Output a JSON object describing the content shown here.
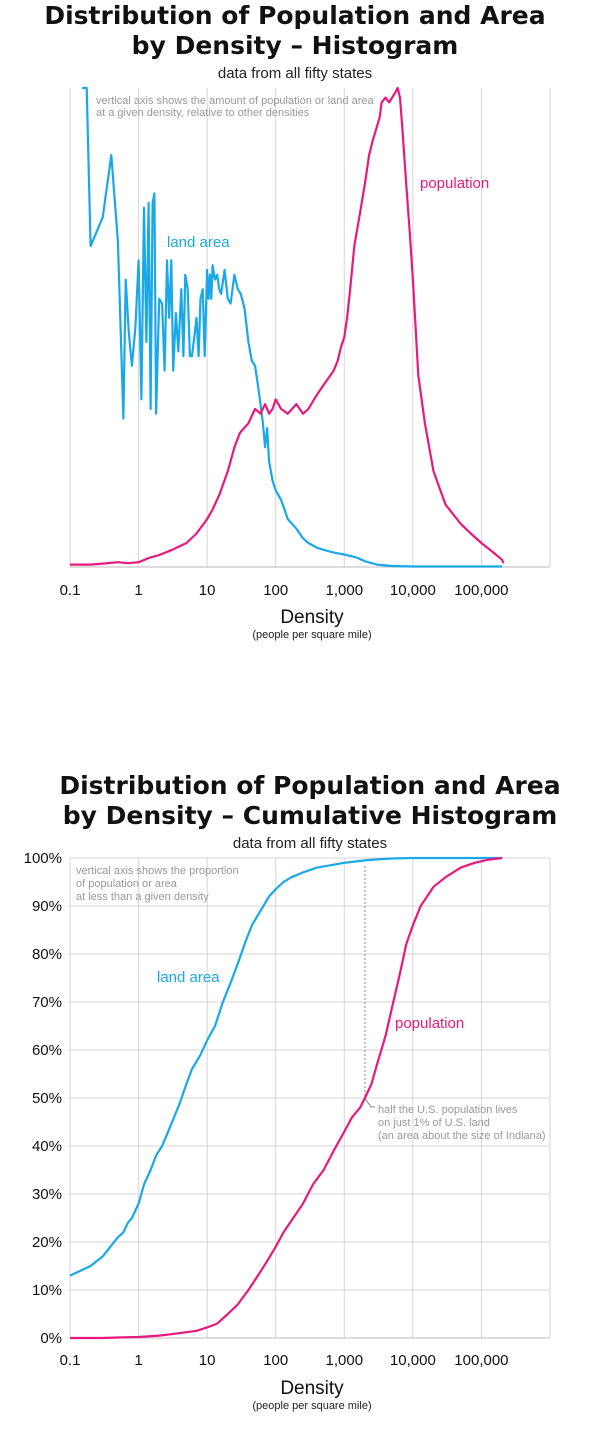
{
  "chart_data": [
    {
      "type": "line",
      "title_lines": [
        "Distribution of Population and Area",
        "by Density – Histogram"
      ],
      "subtitle": "data from all fifty states",
      "note_lines": [
        "vertical axis shows the amount of population or land area",
        "at a given density, relative to other densities"
      ],
      "xlabel": "Density",
      "xlabel_unit": "(people per square mile)",
      "x_scale": "log",
      "x_ticks": [
        0.1,
        1,
        10,
        100,
        1000,
        10000,
        100000
      ],
      "x_tick_labels": [
        "0.1",
        "1",
        "10",
        "100",
        "1,000",
        "10,000",
        "100,000"
      ],
      "xlim": [
        0.1,
        1000000
      ],
      "ylim": [
        0,
        100
      ],
      "grid": "vertical",
      "series": [
        {
          "name": "land area",
          "color": "#1aa8e8",
          "x": [
            0.15,
            0.175,
            0.2,
            0.3,
            0.4,
            0.5,
            0.6,
            0.65,
            0.72,
            0.8,
            0.9,
            1.0,
            1.1,
            1.2,
            1.3,
            1.4,
            1.5,
            1.6,
            1.7,
            1.8,
            2.0,
            2.2,
            2.4,
            2.6,
            2.8,
            3.0,
            3.2,
            3.5,
            3.8,
            4.2,
            4.5,
            4.8,
            5.2,
            5.6,
            6.0,
            6.5,
            7.0,
            7.5,
            8.0,
            8.6,
            9.2,
            10,
            10.5,
            11,
            11.5,
            12,
            13,
            14,
            15,
            16,
            18,
            20,
            22,
            25,
            28,
            31,
            35,
            40,
            45,
            50,
            55,
            60,
            65,
            70,
            75,
            80,
            90,
            100,
            120,
            150,
            200,
            250,
            300,
            400,
            500,
            700,
            1000,
            1500,
            2000,
            3000,
            5000,
            10000,
            50000,
            200000
          ],
          "y": [
            100,
            110,
            67,
            73,
            86,
            68,
            31,
            60,
            49,
            42,
            50,
            64,
            35,
            75,
            47,
            76,
            33,
            76,
            78,
            32,
            56,
            55,
            41,
            64,
            52,
            64,
            41,
            53,
            45,
            58,
            44,
            61,
            58,
            44,
            44,
            48,
            52,
            44,
            56,
            58,
            44,
            62,
            56,
            61,
            56,
            63,
            60,
            61,
            58,
            57,
            62,
            56,
            55,
            61,
            58,
            57,
            54,
            47,
            43,
            42,
            38,
            34,
            30,
            25,
            29,
            22,
            18,
            16,
            14,
            10,
            8,
            6,
            5,
            4,
            3.6,
            3,
            2.6,
            2,
            1.2,
            0.5,
            0.2,
            0.1,
            0.1,
            0.1
          ]
        },
        {
          "name": "population",
          "color": "#e8197e",
          "x": [
            0.1,
            0.2,
            0.3,
            0.5,
            0.7,
            1.0,
            1.5,
            2,
            3,
            5,
            7,
            10,
            12,
            15,
            20,
            25,
            30,
            40,
            50,
            60,
            70,
            80,
            90,
            100,
            120,
            150,
            200,
            250,
            300,
            400,
            500,
            700,
            800,
            900,
            1000,
            1100,
            1200,
            1400,
            1700,
            2000,
            2300,
            2600,
            3000,
            3300,
            3500,
            4000,
            4500,
            5000,
            5500,
            6000,
            6500,
            7000,
            8000,
            9000,
            10000,
            12000,
            15000,
            20000,
            30000,
            50000,
            70000,
            100000,
            150000,
            200000,
            210000
          ],
          "y": [
            0.5,
            0.5,
            0.7,
            1,
            0.8,
            1,
            2,
            2.5,
            3.5,
            5,
            7,
            10,
            12,
            15,
            20,
            25,
            28,
            30,
            33,
            32,
            34,
            32,
            33,
            35,
            33,
            32,
            34,
            32,
            33,
            36,
            38,
            41,
            43,
            46,
            48,
            52,
            57,
            67,
            74,
            80,
            86,
            89,
            92,
            94,
            97,
            98,
            97,
            98,
            99,
            100,
            98,
            92,
            80,
            70,
            60,
            40,
            30,
            20,
            13,
            9,
            7,
            5,
            3,
            1.5,
            0.8
          ]
        }
      ]
    },
    {
      "type": "line",
      "title_lines": [
        "Distribution of Population and Area",
        "by Density – Cumulative Histogram"
      ],
      "subtitle": "data from all fifty states",
      "note_lines": [
        "vertical axis shows the proportion",
        "of population or area",
        "at less than a given density"
      ],
      "annotation_lines": [
        "half the U.S. population lives",
        "on just 1% of U.S. land",
        "(an area about the size of Indiana)"
      ],
      "annotation_x": 2000,
      "annotation_y": 50,
      "xlabel": "Density",
      "xlabel_unit": "(people per square mile)",
      "x_scale": "log",
      "x_ticks": [
        0.1,
        1,
        10,
        100,
        1000,
        10000,
        100000
      ],
      "x_tick_labels": [
        "0.1",
        "1",
        "10",
        "100",
        "1,000",
        "10,000",
        "100,000"
      ],
      "xlim": [
        0.1,
        1000000
      ],
      "ylim": [
        0,
        100
      ],
      "y_ticks": [
        0,
        10,
        20,
        30,
        40,
        50,
        60,
        70,
        80,
        90,
        100
      ],
      "y_tick_labels": [
        "0%",
        "10%",
        "20%",
        "30%",
        "40%",
        "50%",
        "60%",
        "70%",
        "80%",
        "90%",
        "100%"
      ],
      "grid": "both",
      "series": [
        {
          "name": "land area",
          "color": "#1aa8e8",
          "x": [
            0.1,
            0.2,
            0.3,
            0.5,
            0.6,
            0.7,
            0.8,
            1.0,
            1.2,
            1.5,
            1.8,
            2.2,
            2.7,
            3.3,
            4,
            5,
            6,
            8,
            10,
            13,
            17,
            22,
            28,
            35,
            45,
            60,
            80,
            100,
            130,
            170,
            250,
            400,
            700,
            1000,
            2000,
            3000,
            5000,
            10000,
            50000,
            200000
          ],
          "y": [
            13,
            15,
            17,
            21,
            22,
            24,
            25,
            28,
            32,
            35,
            38,
            40,
            43,
            46,
            49,
            53,
            56,
            59,
            62,
            65,
            70,
            74,
            78,
            82,
            86,
            89,
            92,
            93.5,
            95,
            96,
            97,
            98,
            98.6,
            99,
            99.5,
            99.7,
            99.9,
            100,
            100,
            100
          ]
        },
        {
          "name": "population",
          "color": "#e8197e",
          "x": [
            0.1,
            0.3,
            0.5,
            1,
            2,
            3,
            5,
            7,
            10,
            14,
            20,
            28,
            40,
            55,
            75,
            100,
            130,
            180,
            250,
            350,
            500,
            700,
            1000,
            1300,
            1700,
            2000,
            2500,
            3000,
            4000,
            5000,
            6500,
            8000,
            10000,
            13000,
            20000,
            30000,
            50000,
            80000,
            120000,
            200000
          ],
          "y": [
            0,
            0,
            0.1,
            0.2,
            0.5,
            0.8,
            1.2,
            1.5,
            2.2,
            3,
            5,
            7,
            10,
            13,
            16,
            19,
            22,
            25,
            28,
            32,
            35,
            39,
            43,
            46,
            48,
            50,
            53,
            57,
            63,
            69,
            76,
            82,
            86,
            90,
            94,
            96,
            98,
            99,
            99.6,
            100
          ]
        }
      ]
    }
  ]
}
